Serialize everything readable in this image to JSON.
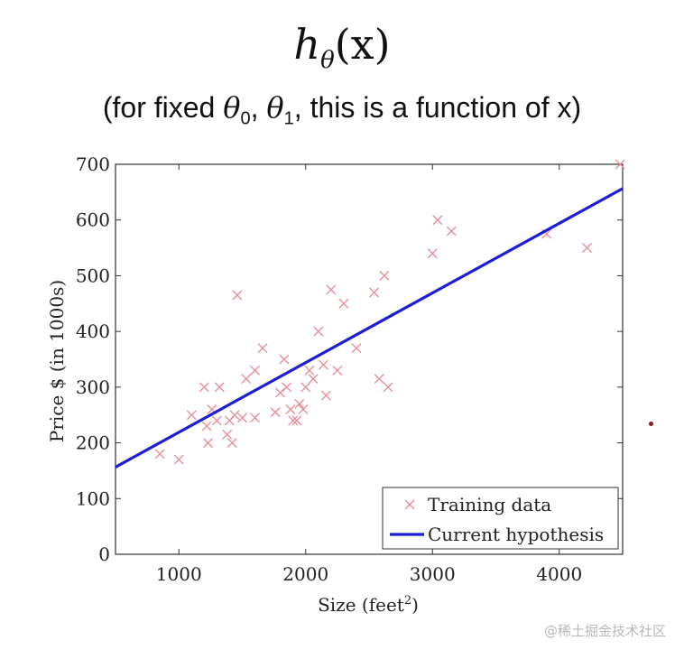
{
  "formula": {
    "fn": "h",
    "sub": "θ",
    "arg": "(x)"
  },
  "subtitle": {
    "before": "(for fixed ",
    "t0": "θ",
    "t0_sub": "0",
    "comma": ", ",
    "t1": "θ",
    "t1_sub": "1",
    "after": ", this is a function of x)"
  },
  "watermark": "@稀土掘金技术社区",
  "colors": {
    "marker": "#e8909a",
    "line": "#1d1dd6",
    "axis": "#333333"
  },
  "chart_data": {
    "type": "scatter",
    "xlabel": "Size (feet",
    "xlabel_sup": "2",
    "xlabel_close": ")",
    "ylabel": "Price $ (in 1000s)",
    "xlim": [
      500,
      4500
    ],
    "ylim": [
      0,
      700
    ],
    "xticks": [
      1000,
      2000,
      3000,
      4000
    ],
    "yticks": [
      0,
      100,
      200,
      300,
      400,
      500,
      600,
      700
    ],
    "grid": false,
    "legend_position": "bottom-right",
    "series": [
      {
        "name": "Training data",
        "marker": "x",
        "points": [
          [
            850,
            180
          ],
          [
            1000,
            170
          ],
          [
            1100,
            250
          ],
          [
            1200,
            300
          ],
          [
            1220,
            230
          ],
          [
            1230,
            200
          ],
          [
            1260,
            260
          ],
          [
            1300,
            240
          ],
          [
            1320,
            300
          ],
          [
            1380,
            215
          ],
          [
            1400,
            240
          ],
          [
            1420,
            200
          ],
          [
            1440,
            250
          ],
          [
            1460,
            465
          ],
          [
            1500,
            245
          ],
          [
            1530,
            315
          ],
          [
            1600,
            245
          ],
          [
            1600,
            330
          ],
          [
            1660,
            370
          ],
          [
            1760,
            255
          ],
          [
            1800,
            290
          ],
          [
            1830,
            350
          ],
          [
            1850,
            300
          ],
          [
            1880,
            260
          ],
          [
            1900,
            240
          ],
          [
            1930,
            240
          ],
          [
            1950,
            270
          ],
          [
            1980,
            260
          ],
          [
            2000,
            300
          ],
          [
            2030,
            330
          ],
          [
            2060,
            315
          ],
          [
            2100,
            400
          ],
          [
            2140,
            340
          ],
          [
            2160,
            285
          ],
          [
            2200,
            475
          ],
          [
            2250,
            330
          ],
          [
            2300,
            450
          ],
          [
            2400,
            370
          ],
          [
            2540,
            470
          ],
          [
            2580,
            315
          ],
          [
            2620,
            500
          ],
          [
            2650,
            300
          ],
          [
            3000,
            540
          ],
          [
            3040,
            600
          ],
          [
            3150,
            580
          ],
          [
            3900,
            575
          ],
          [
            4220,
            550
          ],
          [
            4480,
            700
          ]
        ]
      },
      {
        "name": "Current hypothesis",
        "type": "line",
        "intercept": 94,
        "slope": 0.125,
        "points": [
          [
            500,
            156.5
          ],
          [
            4500,
            656.5
          ]
        ]
      }
    ]
  }
}
